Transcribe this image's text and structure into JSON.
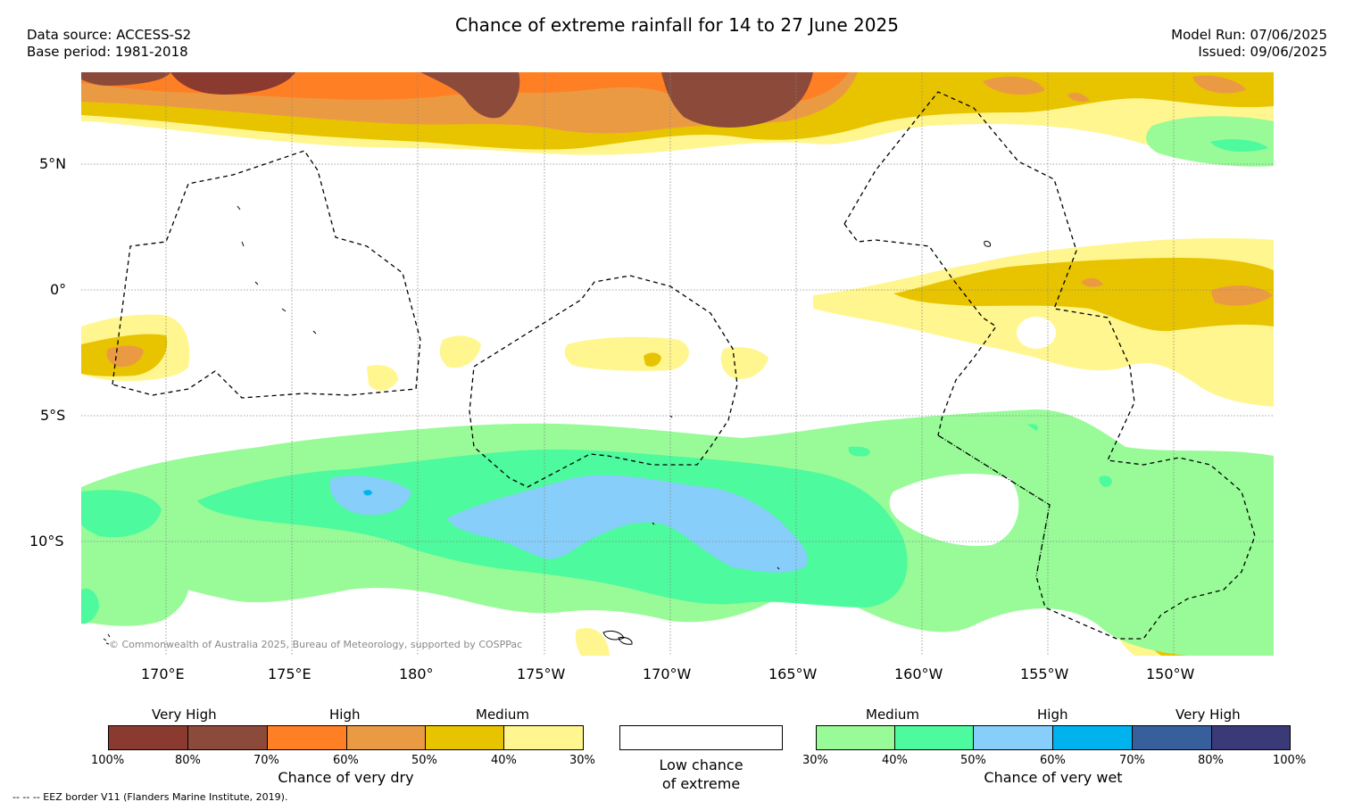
{
  "title": "Chance of extreme rainfall for 14 to 27 June 2025",
  "data_source": "Data source: ACCESS-S2",
  "base_period": "Base period: 1981-2018",
  "model_run": "Model Run: 07/06/2025",
  "issued": "Issued: 09/06/2025",
  "copyright": "© Commonwealth of Australia 2025, Bureau of Meteorology, supported by COSPPac",
  "lat_labels": [
    "5°N",
    "0°",
    "5°S",
    "10°S"
  ],
  "lon_labels": [
    "170°E",
    "175°E",
    "180°",
    "175°W",
    "170°W",
    "165°W",
    "160°W",
    "155°W",
    "150°W"
  ],
  "dry_legend": {
    "categories": [
      "Very High",
      "High",
      "Medium"
    ],
    "ticks": [
      "100%",
      "80%",
      "70%",
      "60%",
      "50%",
      "40%",
      "30%"
    ],
    "colors": [
      "#8b3a2f",
      "#8b4a3a",
      "#ff7f24",
      "#eb9a44",
      "#e8c400",
      "#fff68f"
    ],
    "caption": "Chance of very dry"
  },
  "neutral_legend": {
    "caption_line1": "Low chance",
    "caption_line2": "of extreme",
    "color": "#ffffff"
  },
  "wet_legend": {
    "categories": [
      "Medium",
      "High",
      "Very High"
    ],
    "ticks": [
      "30%",
      "40%",
      "50%",
      "60%",
      "70%",
      "80%",
      "100%"
    ],
    "colors": [
      "#98fb98",
      "#4dfa9d",
      "#87cefa",
      "#00b2ee",
      "#365f9c",
      "#3a3a78"
    ],
    "caption": "Chance of very wet"
  },
  "footnote": "--  --  -- EEZ border V11 (Flanders Marine Institute, 2019).",
  "colors": {
    "very_dry_high": "#8b3a2f",
    "very_dry": "#8b4a3a",
    "dry_orange": "#ff7f24",
    "dry_light_orange": "#eb9a44",
    "dry_gold": "#e8c400",
    "dry_yellow": "#fff68f",
    "wet_light": "#98fb98",
    "wet_medium": "#4dfa9d",
    "wet_high": "#87cefa",
    "wet_very_high": "#00b2ee"
  }
}
